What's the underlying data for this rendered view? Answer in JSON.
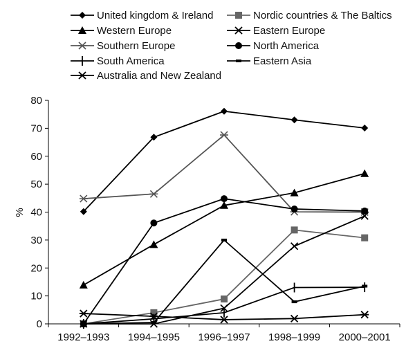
{
  "chart_data": {
    "type": "line",
    "title": "",
    "xlabel": "",
    "ylabel": "%",
    "ylim": [
      0,
      80
    ],
    "yticks": [
      "0",
      "10",
      "20",
      "30",
      "40",
      "50",
      "60",
      "70",
      "80"
    ],
    "categories": [
      "1992–1993",
      "1994–1995",
      "1996–1997",
      "1998–1999",
      "2000–2001"
    ],
    "grid": false,
    "legend_position": "top",
    "series": [
      {
        "name": "United kingdom & Ireland",
        "marker": "diamond",
        "color": "#000000",
        "values": [
          40.2,
          66.8,
          76.1,
          73.0,
          70.1
        ]
      },
      {
        "name": "Nordic countries & The Baltics",
        "marker": "square",
        "color": "#666666",
        "values": [
          0,
          4.0,
          8.9,
          33.6,
          30.8
        ]
      },
      {
        "name": "Western Europe",
        "marker": "triangle",
        "color": "#000000",
        "values": [
          13.9,
          28.4,
          42.4,
          46.9,
          53.8
        ]
      },
      {
        "name": "Eastern Europe",
        "marker": "x",
        "color": "#000000",
        "values": [
          0,
          0,
          5.6,
          27.8,
          38.6
        ]
      },
      {
        "name": "Southern Europe",
        "marker": "star",
        "color": "#555555",
        "values": [
          44.8,
          46.5,
          67.6,
          40.1,
          40.0
        ]
      },
      {
        "name": "North America",
        "marker": "circle",
        "color": "#000000",
        "values": [
          0,
          36.1,
          44.8,
          41.1,
          40.4
        ]
      },
      {
        "name": "South America",
        "marker": "plus",
        "color": "#000000",
        "values": [
          0,
          1.8,
          4.0,
          13.0,
          13.1
        ]
      },
      {
        "name": "Eastern Asia",
        "marker": "dash",
        "color": "#000000",
        "values": [
          0,
          0.5,
          30.0,
          7.9,
          13.5
        ]
      },
      {
        "name": "Australia and New Zealand",
        "marker": "asterisk",
        "color": "#000000",
        "values": [
          3.7,
          2.7,
          1.5,
          1.9,
          3.3
        ]
      }
    ]
  }
}
